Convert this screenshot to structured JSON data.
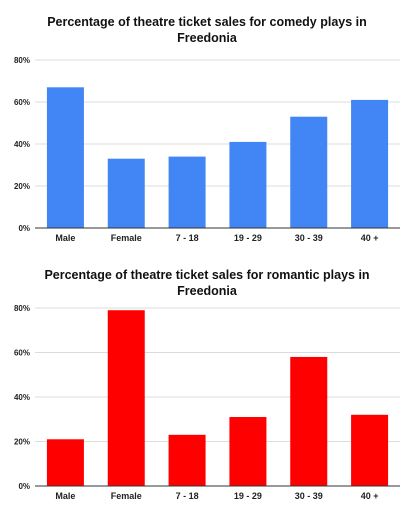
{
  "chart_data": [
    {
      "type": "bar",
      "title": "Percentage of theatre ticket sales for comedy plays in Freedonia",
      "title_lines": [
        "Percentage of theatre ticket sales for comedy plays in",
        "Freedonia"
      ],
      "categories": [
        "Male",
        "Female",
        "7 - 18",
        "19 - 29",
        "30 - 39",
        "40 +"
      ],
      "values": [
        67,
        33,
        34,
        41,
        53,
        61
      ],
      "unit": "%",
      "ylim": [
        0,
        80
      ],
      "y_ticks": [
        0,
        20,
        40,
        60,
        80
      ],
      "y_tick_labels": [
        "0%",
        "20%",
        "40%",
        "60%",
        "80%"
      ],
      "xlabel": "",
      "ylabel": "",
      "grid": true,
      "bar_color": "#4285f4"
    },
    {
      "type": "bar",
      "title": "Percentage of theatre ticket sales for romantic plays in Freedonia",
      "title_lines": [
        "Percentage of theatre ticket sales for romantic plays in",
        "Freedonia"
      ],
      "categories": [
        "Male",
        "Female",
        "7 - 18",
        "19 - 29",
        "30 - 39",
        "40 +"
      ],
      "values": [
        21,
        79,
        23,
        31,
        58,
        32
      ],
      "unit": "%",
      "ylim": [
        0,
        80
      ],
      "y_ticks": [
        0,
        20,
        40,
        60,
        80
      ],
      "y_tick_labels": [
        "0%",
        "20%",
        "40%",
        "60%",
        "80%"
      ],
      "xlabel": "",
      "ylabel": "",
      "grid": true,
      "bar_color": "#ff0000"
    }
  ]
}
